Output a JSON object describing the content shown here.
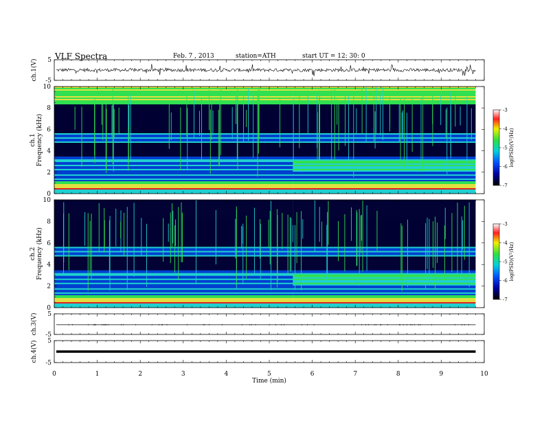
{
  "header": {
    "title": "VLF  Spectra",
    "date": "Feb. 7  , 2013",
    "station": "station=ATH",
    "start_ut": "start  UT  =   12: 30: 0"
  },
  "chart_data": [
    {
      "type": "line",
      "panel": "ch1-waveform",
      "ylabel": "ch.1(V)",
      "yticks": [
        "5",
        "-5"
      ],
      "ylim": [
        -5,
        5
      ],
      "xlim": [
        0,
        10
      ],
      "data_extent_min": 9.8,
      "note_values": "noisy waveform centered near 0 V with spikes"
    },
    {
      "type": "heatmap",
      "panel": "ch1-spectrogram",
      "ylabel": "ch.1\nFrequency  (kHz)",
      "ylabel_lines": [
        "ch.1",
        "Frequency  (kHz)"
      ],
      "yticks": [
        "0",
        "2",
        "4",
        "6",
        "8",
        "10"
      ],
      "ylim": [
        0,
        10
      ],
      "xlim": [
        0,
        10
      ],
      "data_extent_min": 9.8,
      "colorbar": {
        "label": "log(PSD)(V²/Hz)",
        "ticks": [
          "-3",
          "-4",
          "-5",
          "-6",
          "-7"
        ],
        "range": [
          -7,
          -3
        ]
      },
      "band_step_min": 5.55
    },
    {
      "type": "heatmap",
      "panel": "ch2-spectrogram",
      "ylabel": "ch.2\nFrequency  (kHz)",
      "ylabel_lines": [
        "ch.2",
        "Frequency  (kHz)"
      ],
      "yticks": [
        "0",
        "2",
        "4",
        "6",
        "8",
        "10"
      ],
      "ylim": [
        0,
        10
      ],
      "xlim": [
        0,
        10
      ],
      "data_extent_min": 9.8,
      "colorbar": {
        "label": "log(PSD)(V²/Hz)",
        "ticks": [
          "-3",
          "-4",
          "-5",
          "-6",
          "-7"
        ],
        "range": [
          -7,
          -3
        ]
      },
      "band_step_min": 5.55
    },
    {
      "type": "line",
      "panel": "ch3-waveform",
      "ylabel": "ch.3(V)",
      "yticks": [
        "5",
        "-5"
      ],
      "ylim": [
        -5,
        5
      ],
      "xlim": [
        0,
        10
      ],
      "data_extent_min": 9.8,
      "level_v": -0.3
    },
    {
      "type": "line",
      "panel": "ch4-waveform",
      "ylabel": "ch.4(V)",
      "yticks": [
        "5",
        "-5"
      ],
      "ylim": [
        -5,
        5
      ],
      "xlim": [
        0,
        10
      ],
      "data_extent_min": 9.8,
      "level_v": 0.0
    }
  ],
  "x_axis": {
    "label": "Time  (min)",
    "ticks": [
      "0",
      "1",
      "2",
      "3",
      "4",
      "5",
      "6",
      "7",
      "8",
      "9",
      "10"
    ],
    "range": [
      0,
      10
    ]
  },
  "colors": {
    "dark": "#000033",
    "blue": "#0040d0",
    "cyan": "#20d0d0",
    "green": "#30e050",
    "yellow": "#e0e040",
    "red": "#e02020"
  }
}
